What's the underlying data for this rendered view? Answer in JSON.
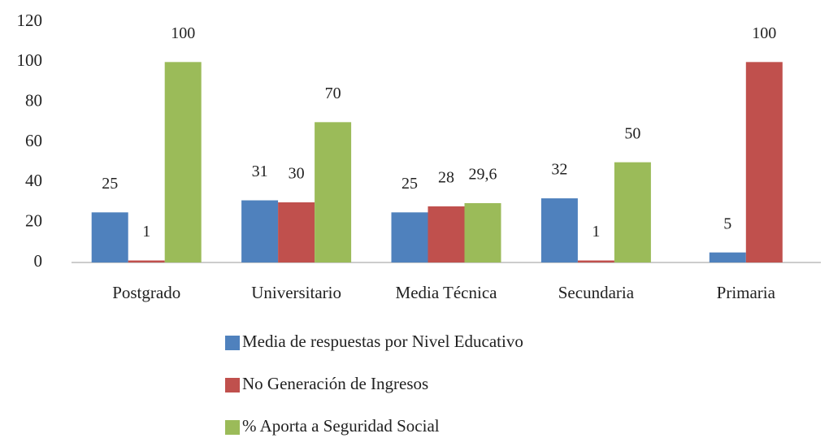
{
  "chart_data": {
    "type": "bar",
    "categories": [
      "Postgrado",
      "Universitario",
      "Media Técnica",
      "Secundaria",
      "Primaria"
    ],
    "series": [
      {
        "name": "Media de respuestas por Nivel Educativo",
        "color": "#4f81bd",
        "values": [
          25,
          31,
          25,
          32,
          5
        ]
      },
      {
        "name": "No Generación de Ingresos",
        "color": "#c0504d",
        "values": [
          1,
          30,
          28,
          1,
          100
        ]
      },
      {
        "name": "% Aporta a Seguridad Social",
        "color": "#9bbb59",
        "values": [
          100,
          70,
          29.6,
          50,
          null
        ],
        "value_labels": [
          "100",
          "70",
          "29,6",
          "50",
          null
        ]
      }
    ],
    "ylim": [
      0,
      120
    ],
    "yticks": [
      0,
      20,
      40,
      60,
      80,
      100,
      120
    ],
    "grid": false,
    "legend": "bottom"
  }
}
